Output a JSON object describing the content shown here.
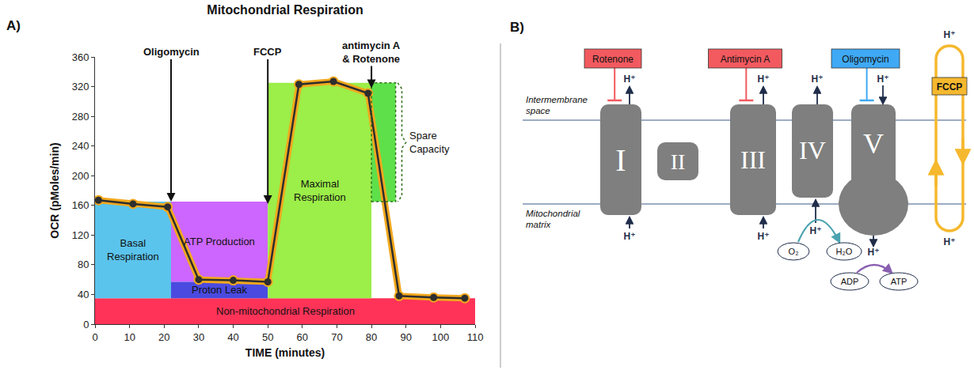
{
  "chart_data": {
    "type": "line",
    "panel_label": "A)",
    "title": "Mitochondrial Respiration",
    "x_label": "TIME (minutes)",
    "y_label": "OCR (pMoles/min)",
    "x": [
      1,
      11,
      21,
      30,
      40,
      50,
      59,
      69,
      79,
      88,
      98,
      107
    ],
    "series": [
      {
        "color": "#2e2e2e",
        "marker": "circle",
        "values": [
          167,
          162,
          158,
          60,
          59,
          57,
          323,
          327,
          311,
          38,
          36,
          35
        ]
      }
    ],
    "xlim": [
      0,
      110
    ],
    "xticks": [
      0,
      10,
      20,
      30,
      40,
      50,
      60,
      70,
      80,
      90,
      100,
      110
    ],
    "ylim": [
      0,
      360
    ],
    "yticks": [
      0,
      40,
      80,
      120,
      160,
      200,
      240,
      280,
      320,
      360
    ],
    "grid": false,
    "events": [
      {
        "label": "Oligomycin",
        "x": 22,
        "y": 165
      },
      {
        "label": "FCCP",
        "x": 50,
        "y": 162
      },
      {
        "label": "antimycin A & Rotenone",
        "x": 80,
        "y": 318
      }
    ],
    "regions": [
      {
        "name": "Non-mitochondrial Respiration",
        "color": "#ff3358",
        "x": [
          0,
          110
        ],
        "y": [
          0,
          35
        ]
      },
      {
        "name": "Basal Respiration",
        "color": "#5bc4ec",
        "x": [
          0,
          22
        ],
        "y": [
          35,
          165
        ]
      },
      {
        "name": "ATP Production",
        "color": "#cc66ff",
        "x": [
          22,
          50
        ],
        "y": [
          57,
          165
        ]
      },
      {
        "name": "Proton Leak",
        "color": "#4a4ae0",
        "x": [
          22,
          50
        ],
        "y": [
          35,
          57
        ]
      },
      {
        "name": "Maximal Respiration",
        "color": "#9cee48",
        "x": [
          50,
          80
        ],
        "y": [
          35,
          325
        ]
      },
      {
        "name": "Spare Capacity",
        "color": "#5ee04a",
        "x": [
          80,
          87
        ],
        "y": [
          165,
          325
        ],
        "line_style": "dashed"
      }
    ]
  },
  "diagram": {
    "panel_label": "B)",
    "compartments": [
      "Intermembrane space",
      "Mitochondrial matrix"
    ],
    "complexes": [
      "I",
      "II",
      "III",
      "IV",
      "V"
    ],
    "inhibitors": [
      {
        "label": "Rotenone",
        "target": "I",
        "color": "#f25a5f"
      },
      {
        "label": "Antimycin A",
        "target": "III",
        "color": "#f25a5f"
      },
      {
        "label": "Oligomycin",
        "target": "V",
        "color": "#3fa9f5"
      }
    ],
    "uncoupler": {
      "label": "FCCP",
      "color": "#f5b82e"
    },
    "proton": "H⁺",
    "reactions": [
      {
        "complex": "IV",
        "from": "O₂",
        "to": "H₂O"
      },
      {
        "complex": "V",
        "from": "ADP",
        "to": "ATP"
      }
    ]
  }
}
